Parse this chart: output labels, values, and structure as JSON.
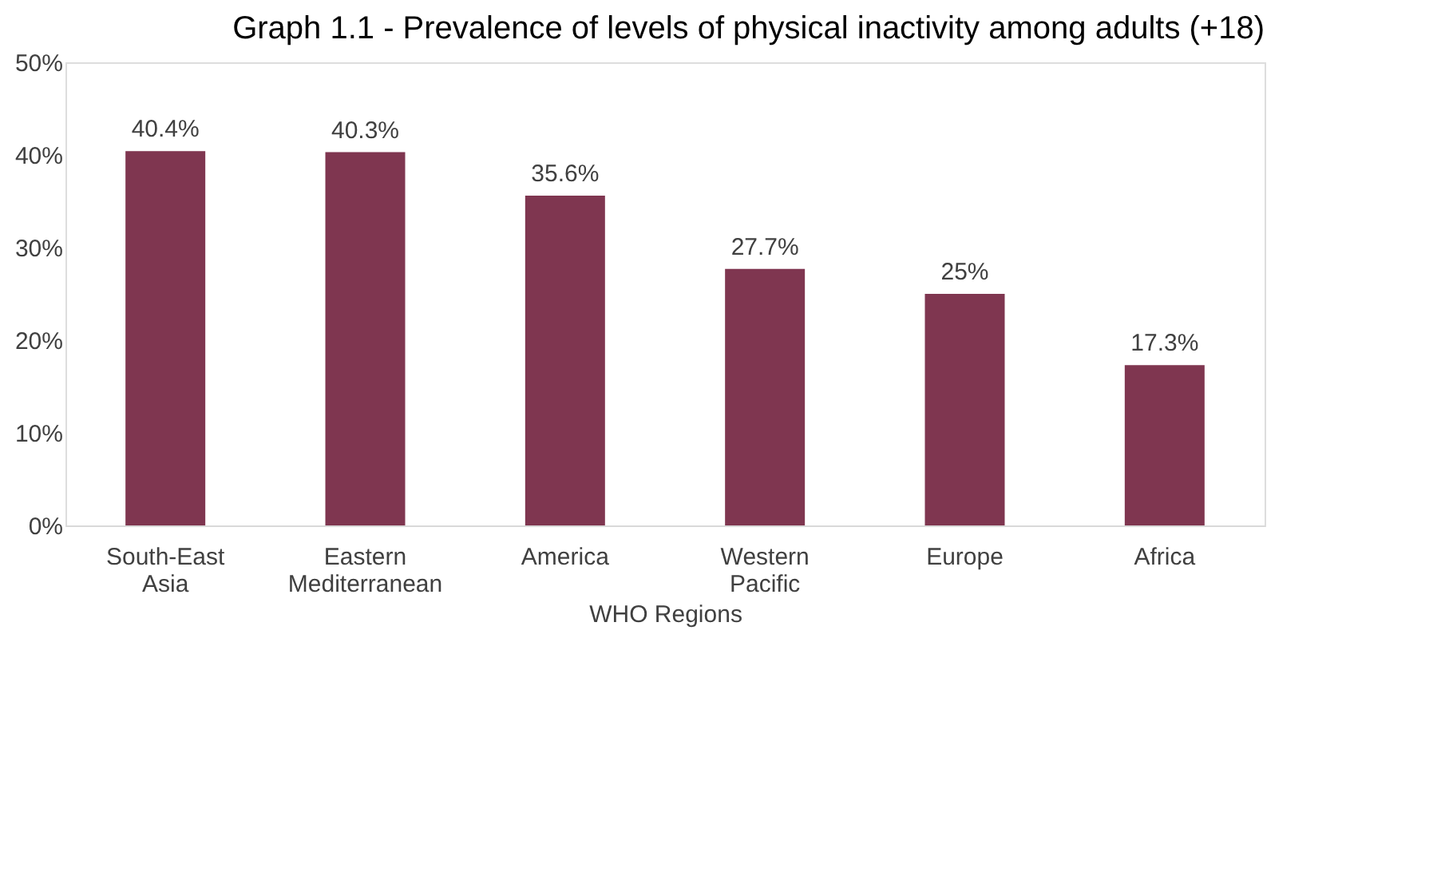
{
  "chart_data": {
    "type": "bar",
    "title": "Graph 1.1 - Prevalence of levels of physical inactivity among adults (+18)",
    "xlabel": "WHO Regions",
    "categories": [
      "South-East Asia",
      "Eastern Mediterranean",
      "America",
      "Western Pacific",
      "Europe",
      "Africa"
    ],
    "values": [
      40.4,
      40.3,
      35.6,
      27.7,
      25,
      17.3
    ],
    "value_labels": [
      "40.4%",
      "40.3%",
      "35.6%",
      "27.7%",
      "25%",
      "17.3%"
    ],
    "color": "#7f3650",
    "ylim": [
      0,
      50
    ],
    "yticks": [
      {
        "value": 0,
        "label": "0%"
      },
      {
        "value": 10,
        "label": "10%"
      },
      {
        "value": 20,
        "label": "20%"
      },
      {
        "value": 30,
        "label": "30%"
      },
      {
        "value": 40,
        "label": "40%"
      },
      {
        "value": 50,
        "label": "50%"
      }
    ],
    "grid": false
  }
}
